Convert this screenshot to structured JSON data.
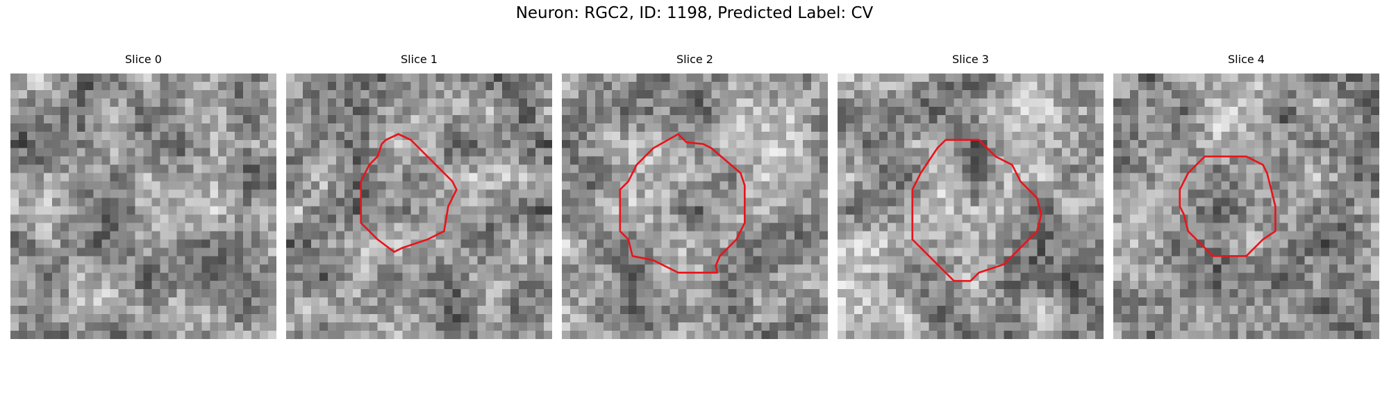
{
  "figure": {
    "title": "Neuron: RGC2, ID: 1198, Predicted Label: CV",
    "contour_color": "#e8141a",
    "colormap": "gray",
    "panels": [
      {
        "title": "Slice 0",
        "has_contour": false
      },
      {
        "title": "Slice 1",
        "has_contour": true
      },
      {
        "title": "Slice 2",
        "has_contour": true
      },
      {
        "title": "Slice 3",
        "has_contour": true
      },
      {
        "title": "Slice 4",
        "has_contour": true
      }
    ]
  }
}
